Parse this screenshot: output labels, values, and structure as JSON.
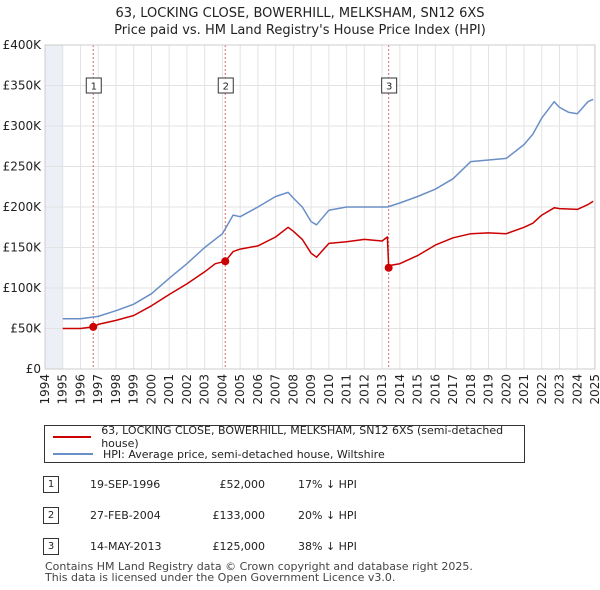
{
  "chart_data": {
    "type": "line",
    "title": "63, LOCKING CLOSE, BOWERHILL, MELKSHAM, SN12 6XS",
    "subtitle": "Price paid vs. HM Land Registry's House Price Index (HPI)",
    "xlim": [
      1994,
      2025
    ],
    "ylim": [
      0,
      400000
    ],
    "x_ticks": [
      "1994",
      "1995",
      "1996",
      "1997",
      "1998",
      "1999",
      "2000",
      "2001",
      "2002",
      "2003",
      "2004",
      "2005",
      "2006",
      "2007",
      "2008",
      "2009",
      "2010",
      "2011",
      "2012",
      "2013",
      "2014",
      "2015",
      "2016",
      "2017",
      "2018",
      "2019",
      "2020",
      "2021",
      "2022",
      "2023",
      "2024",
      "2025"
    ],
    "y_ticks": [
      {
        "value": 0,
        "label": "£0"
      },
      {
        "value": 50000,
        "label": "£50K"
      },
      {
        "value": 100000,
        "label": "£100K"
      },
      {
        "value": 150000,
        "label": "£150K"
      },
      {
        "value": 200000,
        "label": "£200K"
      },
      {
        "value": 250000,
        "label": "£250K"
      },
      {
        "value": 300000,
        "label": "£300K"
      },
      {
        "value": 350000,
        "label": "£350K"
      },
      {
        "value": 400000,
        "label": "£400K"
      }
    ],
    "grid": true,
    "data_start": 1995.0,
    "data_end": 2024.95,
    "series": [
      {
        "name": "63, LOCKING CLOSE, BOWERHILL, MELKSHAM, SN12 6XS (semi-detached house)",
        "color": "#cc0000",
        "x": [
          1995.0,
          1996.0,
          1996.72,
          1997.0,
          1998.0,
          1999.0,
          2000.0,
          2001.0,
          2002.0,
          2003.0,
          2003.6,
          2004.16,
          2004.6,
          2005.0,
          2006.0,
          2007.0,
          2007.7,
          2008.0,
          2008.5,
          2009.0,
          2009.3,
          2010.0,
          2011.0,
          2012.0,
          2013.0,
          2013.3,
          2013.37,
          2013.5,
          2014.0,
          2015.0,
          2016.0,
          2017.0,
          2018.0,
          2019.0,
          2020.0,
          2021.0,
          2021.5,
          2022.0,
          2022.7,
          2023.0,
          2024.0,
          2024.6,
          2024.9
        ],
        "y": [
          50000,
          50000,
          52000,
          55000,
          60000,
          66000,
          78000,
          92000,
          105000,
          120000,
          130000,
          133000,
          145000,
          148000,
          152000,
          163000,
          175000,
          170000,
          160000,
          143000,
          138000,
          155000,
          157000,
          160000,
          158000,
          163000,
          125000,
          128000,
          130000,
          140000,
          153000,
          162000,
          167000,
          168000,
          167000,
          175000,
          180000,
          190000,
          199000,
          198000,
          197000,
          203000,
          207000
        ]
      },
      {
        "name": "HPI: Average price, semi-detached house, Wiltshire",
        "color": "#6a8fc7",
        "x": [
          1995.0,
          1996.0,
          1997.0,
          1998.0,
          1999.0,
          2000.0,
          2001.0,
          2002.0,
          2003.0,
          2004.0,
          2004.6,
          2005.0,
          2006.0,
          2007.0,
          2007.7,
          2008.0,
          2008.5,
          2009.0,
          2009.3,
          2010.0,
          2011.0,
          2012.0,
          2013.0,
          2013.3,
          2014.0,
          2015.0,
          2016.0,
          2017.0,
          2018.0,
          2019.0,
          2020.0,
          2021.0,
          2021.5,
          2022.0,
          2022.7,
          2023.0,
          2023.5,
          2024.0,
          2024.6,
          2024.9
        ],
        "y": [
          62000,
          62000,
          65000,
          72000,
          80000,
          93000,
          112000,
          130000,
          150000,
          167000,
          190000,
          188000,
          200000,
          213000,
          218000,
          211000,
          200000,
          182000,
          178000,
          196000,
          200000,
          200000,
          200000,
          200000,
          205000,
          213000,
          222000,
          235000,
          256000,
          258000,
          260000,
          277000,
          290000,
          310000,
          330000,
          323000,
          317000,
          315000,
          330000,
          333000
        ]
      }
    ],
    "sales": [
      {
        "label": "1",
        "x": 1996.72,
        "y": 52000
      },
      {
        "label": "2",
        "x": 2004.16,
        "y": 133000
      },
      {
        "label": "3",
        "x": 2013.37,
        "y": 125000
      }
    ]
  },
  "legend": {
    "property": "63, LOCKING CLOSE, BOWERHILL, MELKSHAM, SN12 6XS (semi-detached house)",
    "hpi": "HPI: Average price, semi-detached house, Wiltshire",
    "property_color": "#cc0000",
    "hpi_color": "#6a8fc7"
  },
  "transactions": [
    {
      "num": "1",
      "date": "19-SEP-1996",
      "price": "£52,000",
      "diff": "17% ↓ HPI"
    },
    {
      "num": "2",
      "date": "27-FEB-2004",
      "price": "£133,000",
      "diff": "20% ↓ HPI"
    },
    {
      "num": "3",
      "date": "14-MAY-2013",
      "price": "£125,000",
      "diff": "38% ↓ HPI"
    }
  ],
  "footer": {
    "line1": "Contains HM Land Registry data © Crown copyright and database right 2025.",
    "line2": "This data is licensed under the Open Government Licence v3.0."
  }
}
